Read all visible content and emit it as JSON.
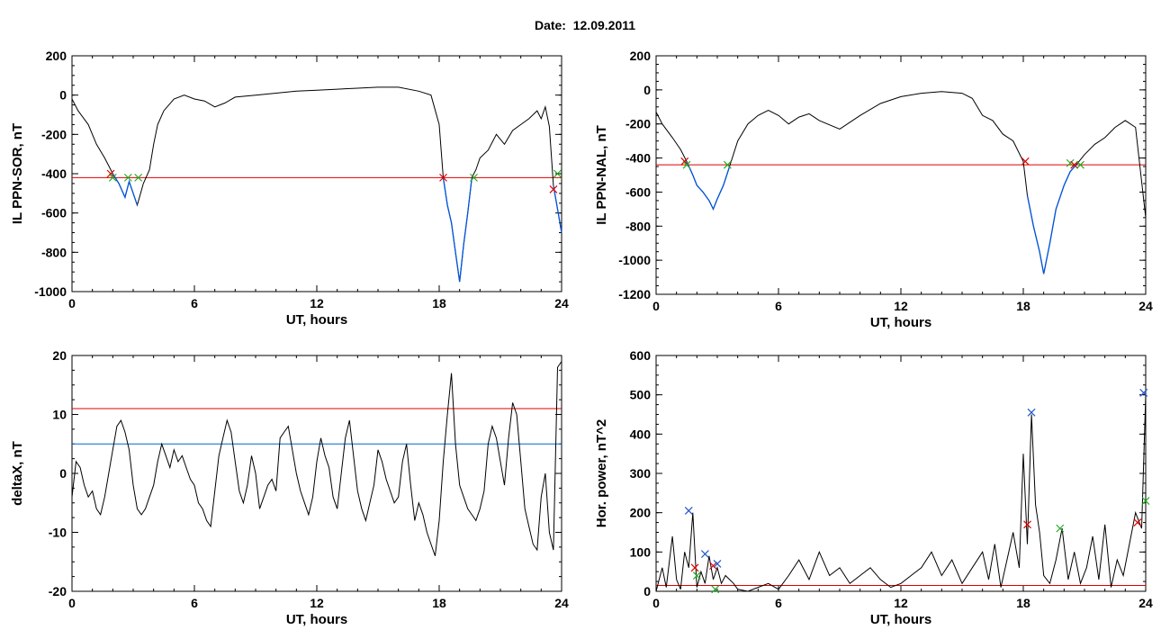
{
  "title": "Date:  12.09.2011",
  "colors": {
    "trace": "#000000",
    "highlight": "#0055dd",
    "threshold_red": "#dd0000",
    "threshold_blue": "#0066cc",
    "marker_red": "#dd0000",
    "marker_green": "#22aa22",
    "marker_blue": "#2255cc"
  },
  "chart_data": [
    {
      "type": "line",
      "xlabel": "UT, hours",
      "ylabel": "IL PPN-SOR, nT",
      "xlim": [
        0,
        24
      ],
      "ylim": [
        -1000,
        200
      ],
      "xticks": [
        0,
        6,
        12,
        18,
        24
      ],
      "yticks": [
        200,
        0,
        -200,
        -400,
        -600,
        -800,
        -1000
      ],
      "ytick_labels": [
        "200",
        "0",
        "-200",
        "-400",
        "-600",
        "-800",
        "-1000"
      ],
      "threshold_red": -420,
      "series": [
        {
          "x": [
            0,
            0.3,
            0.8,
            1.2,
            1.6,
            2.0,
            2.3,
            2.6,
            2.8,
            3.0,
            3.2,
            3.5,
            3.8,
            4.0,
            4.2,
            4.5,
            5.0,
            5.5,
            6.0,
            6.5,
            7.0,
            7.5,
            8.0,
            9.0,
            10.0,
            11.0,
            12.0,
            13.0,
            14.0,
            15.0,
            16.0,
            17.0,
            17.6,
            18.0,
            18.2,
            18.4,
            18.6,
            18.8,
            19.0,
            19.2,
            19.4,
            19.6,
            19.8,
            20.0,
            20.4,
            20.8,
            21.2,
            21.6,
            22.0,
            22.4,
            22.8,
            23.0,
            23.2,
            23.4,
            23.6,
            23.8,
            24.0
          ],
          "y": [
            -20,
            -80,
            -150,
            -250,
            -320,
            -400,
            -450,
            -520,
            -440,
            -500,
            -560,
            -450,
            -380,
            -250,
            -150,
            -80,
            -20,
            0,
            -20,
            -30,
            -60,
            -40,
            -10,
            0,
            10,
            20,
            25,
            30,
            35,
            40,
            40,
            20,
            0,
            -150,
            -420,
            -560,
            -650,
            -800,
            -950,
            -760,
            -600,
            -420,
            -380,
            -320,
            -280,
            -200,
            -250,
            -180,
            -150,
            -120,
            -80,
            -120,
            -60,
            -160,
            -460,
            -580,
            -700
          ]
        }
      ],
      "markers": [
        {
          "x": 1.9,
          "y": -400,
          "color": "red"
        },
        {
          "x": 2.0,
          "y": -420,
          "color": "green"
        },
        {
          "x": 2.75,
          "y": -420,
          "color": "green"
        },
        {
          "x": 3.25,
          "y": -420,
          "color": "green"
        },
        {
          "x": 18.2,
          "y": -420,
          "color": "red"
        },
        {
          "x": 19.7,
          "y": -420,
          "color": "green"
        },
        {
          "x": 23.6,
          "y": -480,
          "color": "red"
        },
        {
          "x": 23.8,
          "y": -400,
          "color": "green"
        }
      ],
      "highlight_ranges": [
        [
          1.9,
          3.3
        ],
        [
          18.2,
          19.7
        ],
        [
          23.6,
          24.0
        ]
      ]
    },
    {
      "type": "line",
      "xlabel": "UT, hours",
      "ylabel": "IL PPN-NAL, nT",
      "xlim": [
        0,
        24
      ],
      "ylim": [
        -1200,
        200
      ],
      "xticks": [
        0,
        6,
        12,
        18,
        24
      ],
      "yticks": [
        200,
        0,
        -200,
        -400,
        -600,
        -800,
        -1000,
        -1200
      ],
      "ytick_labels": [
        "200",
        "0",
        "-200",
        "-400",
        "-600",
        "-800",
        "-1000",
        "-1200"
      ],
      "threshold_red": -440,
      "series": [
        {
          "x": [
            0,
            0.3,
            0.8,
            1.2,
            1.5,
            1.8,
            2.0,
            2.3,
            2.6,
            2.8,
            3.0,
            3.3,
            3.6,
            4.0,
            4.5,
            5.0,
            5.5,
            6.0,
            6.5,
            7.0,
            7.5,
            8.0,
            9.0,
            10.0,
            11.0,
            12.0,
            13.0,
            14.0,
            15.0,
            15.5,
            16.0,
            16.5,
            17.0,
            17.5,
            18.0,
            18.2,
            18.5,
            18.8,
            19.0,
            19.3,
            19.6,
            20.0,
            20.3,
            20.6,
            21.0,
            21.5,
            22.0,
            22.5,
            23.0,
            23.5,
            24.0
          ],
          "y": [
            -130,
            -200,
            -280,
            -350,
            -420,
            -500,
            -560,
            -600,
            -650,
            -700,
            -640,
            -560,
            -450,
            -300,
            -200,
            -150,
            -120,
            -150,
            -200,
            -160,
            -140,
            -180,
            -230,
            -150,
            -80,
            -40,
            -20,
            -10,
            -20,
            -50,
            -150,
            -180,
            -260,
            -300,
            -420,
            -620,
            -800,
            -950,
            -1080,
            -900,
            -700,
            -560,
            -480,
            -440,
            -380,
            -320,
            -280,
            -220,
            -180,
            -220,
            -750
          ]
        }
      ],
      "markers": [
        {
          "x": 1.4,
          "y": -420,
          "color": "red"
        },
        {
          "x": 1.5,
          "y": -440,
          "color": "green"
        },
        {
          "x": 3.5,
          "y": -440,
          "color": "green"
        },
        {
          "x": 18.1,
          "y": -420,
          "color": "red"
        },
        {
          "x": 20.3,
          "y": -430,
          "color": "green"
        },
        {
          "x": 20.5,
          "y": -440,
          "color": "red"
        },
        {
          "x": 20.8,
          "y": -440,
          "color": "green"
        }
      ],
      "highlight_ranges": [
        [
          1.4,
          3.6
        ],
        [
          18.1,
          20.8
        ]
      ]
    },
    {
      "type": "line",
      "xlabel": "UT, hours",
      "ylabel": "deltaX, nT",
      "xlim": [
        0,
        24
      ],
      "ylim": [
        -20,
        20
      ],
      "xticks": [
        0,
        6,
        12,
        18,
        24
      ],
      "yticks": [
        20,
        10,
        0,
        -10,
        -20
      ],
      "ytick_labels": [
        "20",
        "10",
        "0",
        "-10",
        "-20"
      ],
      "threshold_red": 11,
      "threshold_blue": 5,
      "series": [
        {
          "x": [
            0,
            0.2,
            0.4,
            0.6,
            0.8,
            1.0,
            1.2,
            1.4,
            1.6,
            1.8,
            2.0,
            2.2,
            2.4,
            2.6,
            2.8,
            3.0,
            3.2,
            3.4,
            3.6,
            3.8,
            4.0,
            4.2,
            4.4,
            4.6,
            4.8,
            5.0,
            5.2,
            5.4,
            5.6,
            5.8,
            6.0,
            6.2,
            6.4,
            6.6,
            6.8,
            7.0,
            7.2,
            7.4,
            7.6,
            7.8,
            8.0,
            8.2,
            8.4,
            8.6,
            8.8,
            9.0,
            9.2,
            9.4,
            9.6,
            9.8,
            10.0,
            10.2,
            10.4,
            10.6,
            10.8,
            11.0,
            11.2,
            11.4,
            11.6,
            11.8,
            12.0,
            12.2,
            12.4,
            12.6,
            12.8,
            13.0,
            13.2,
            13.4,
            13.6,
            13.8,
            14.0,
            14.2,
            14.4,
            14.6,
            14.8,
            15.0,
            15.2,
            15.4,
            15.6,
            15.8,
            16.0,
            16.2,
            16.4,
            16.6,
            16.8,
            17.0,
            17.2,
            17.4,
            17.6,
            17.8,
            18.0,
            18.2,
            18.4,
            18.6,
            18.8,
            19.0,
            19.2,
            19.4,
            19.6,
            19.8,
            20.0,
            20.2,
            20.4,
            20.6,
            20.8,
            21.0,
            21.2,
            21.4,
            21.6,
            21.8,
            22.0,
            22.2,
            22.4,
            22.6,
            22.8,
            23.0,
            23.2,
            23.4,
            23.6,
            23.8,
            24.0
          ],
          "y": [
            -4,
            2,
            1,
            -2,
            -4,
            -3,
            -6,
            -7,
            -4,
            0,
            4,
            8,
            9,
            7,
            4,
            -2,
            -6,
            -7,
            -6,
            -4,
            -2,
            2,
            5,
            3,
            1,
            4,
            2,
            3,
            1,
            -1,
            -2,
            -5,
            -6,
            -8,
            -9,
            -3,
            3,
            6,
            9,
            7,
            2,
            -3,
            -5,
            -2,
            3,
            0,
            -6,
            -4,
            -2,
            -1,
            -3,
            6,
            7,
            8,
            4,
            0,
            -3,
            -5,
            -7,
            -4,
            2,
            6,
            3,
            1,
            -4,
            -6,
            0,
            6,
            9,
            3,
            -3,
            -6,
            -8,
            -5,
            -2,
            4,
            2,
            -1,
            -3,
            -5,
            -4,
            2,
            5,
            -2,
            -8,
            -5,
            -7,
            -10,
            -12,
            -14,
            -8,
            2,
            10,
            17,
            5,
            -2,
            -4,
            -6,
            -7,
            -8,
            -6,
            -3,
            5,
            8,
            6,
            2,
            -2,
            6,
            12,
            10,
            2,
            -6,
            -9,
            -12,
            -13,
            -4,
            0,
            -10,
            -13,
            18,
            19
          ]
        }
      ],
      "markers": [],
      "highlight_ranges": []
    },
    {
      "type": "line",
      "xlabel": "UT, hours",
      "ylabel": "Hor. power, nT^2",
      "xlim": [
        0,
        24
      ],
      "ylim": [
        0,
        600
      ],
      "xticks": [
        0,
        6,
        12,
        18,
        24
      ],
      "yticks": [
        600,
        500,
        400,
        300,
        200,
        100,
        0
      ],
      "ytick_labels": [
        "600",
        "500",
        "400",
        "300",
        "200",
        "100",
        "0"
      ],
      "threshold_red": 15,
      "series": [
        {
          "x": [
            0,
            0.3,
            0.5,
            0.8,
            1.0,
            1.2,
            1.4,
            1.6,
            1.8,
            2.0,
            2.2,
            2.4,
            2.6,
            2.8,
            3.0,
            3.2,
            3.4,
            3.6,
            3.8,
            4.0,
            4.5,
            5.0,
            5.5,
            6.0,
            6.5,
            7.0,
            7.5,
            8.0,
            8.5,
            9.0,
            9.5,
            10.0,
            10.5,
            11.0,
            11.5,
            12.0,
            12.5,
            13.0,
            13.5,
            14.0,
            14.5,
            15.0,
            15.5,
            16.0,
            16.3,
            16.6,
            16.9,
            17.2,
            17.5,
            17.8,
            18.0,
            18.2,
            18.4,
            18.6,
            18.8,
            19.0,
            19.3,
            19.6,
            19.9,
            20.2,
            20.5,
            20.8,
            21.1,
            21.4,
            21.7,
            22.0,
            22.3,
            22.6,
            22.9,
            23.2,
            23.5,
            23.8,
            24.0
          ],
          "y": [
            0,
            60,
            10,
            140,
            30,
            5,
            100,
            60,
            200,
            10,
            50,
            20,
            90,
            30,
            60,
            20,
            40,
            30,
            20,
            5,
            0,
            10,
            20,
            5,
            40,
            80,
            30,
            100,
            40,
            60,
            20,
            40,
            60,
            30,
            10,
            20,
            40,
            60,
            100,
            40,
            80,
            20,
            60,
            100,
            30,
            120,
            10,
            80,
            150,
            60,
            350,
            120,
            450,
            220,
            150,
            40,
            20,
            80,
            160,
            30,
            100,
            20,
            60,
            140,
            30,
            170,
            10,
            80,
            40,
            120,
            200,
            160,
            500
          ]
        }
      ],
      "markers": [
        {
          "x": 1.6,
          "y": 205,
          "color": "blue"
        },
        {
          "x": 1.9,
          "y": 60,
          "color": "red"
        },
        {
          "x": 2.0,
          "y": 40,
          "color": "green"
        },
        {
          "x": 2.4,
          "y": 95,
          "color": "blue"
        },
        {
          "x": 2.8,
          "y": 65,
          "color": "red"
        },
        {
          "x": 2.9,
          "y": 5,
          "color": "green"
        },
        {
          "x": 3.0,
          "y": 70,
          "color": "blue"
        },
        {
          "x": 18.2,
          "y": 170,
          "color": "red"
        },
        {
          "x": 18.4,
          "y": 455,
          "color": "blue"
        },
        {
          "x": 19.8,
          "y": 160,
          "color": "green"
        },
        {
          "x": 23.6,
          "y": 175,
          "color": "red"
        },
        {
          "x": 23.9,
          "y": 505,
          "color": "blue"
        },
        {
          "x": 24.0,
          "y": 230,
          "color": "green"
        }
      ],
      "highlight_ranges": []
    }
  ]
}
